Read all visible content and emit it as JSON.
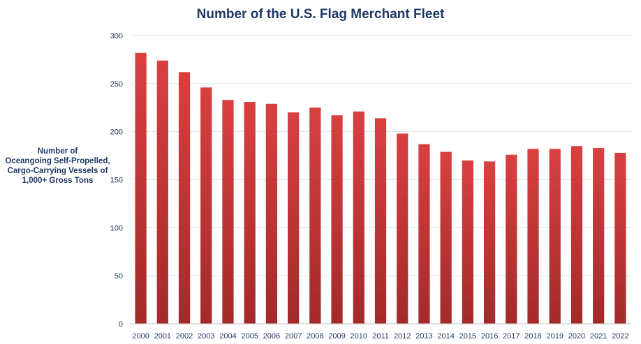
{
  "chart_data": {
    "type": "bar",
    "title": "Number of the U.S. Flag Merchant Fleet",
    "ylabel_lines": [
      "Number of",
      "Oceangoing Self-Propelled,",
      "Cargo-Carrying Vessels of",
      "1,000+ Gross Tons"
    ],
    "xlabel": "",
    "ylim": [
      0,
      300
    ],
    "yticks": [
      0,
      50,
      100,
      150,
      200,
      250,
      300
    ],
    "grid": true,
    "categories": [
      "2000",
      "2001",
      "2002",
      "2003",
      "2004",
      "2005",
      "2006",
      "2007",
      "2008",
      "2009",
      "2010",
      "2011",
      "2012",
      "2013",
      "2014",
      "2015",
      "2016",
      "2017",
      "2018",
      "2019",
      "2020",
      "2021",
      "2022"
    ],
    "values": [
      282,
      274,
      262,
      246,
      233,
      231,
      229,
      220,
      225,
      217,
      221,
      214,
      198,
      187,
      179,
      170,
      169,
      176,
      182,
      182,
      185,
      183,
      178
    ],
    "bar_color_top": "#d94040",
    "bar_color_bottom": "#a32a2a",
    "grid_color": "#d9e2ec",
    "axis_color": "#bfbfbf",
    "text_color": "#1f3864"
  }
}
